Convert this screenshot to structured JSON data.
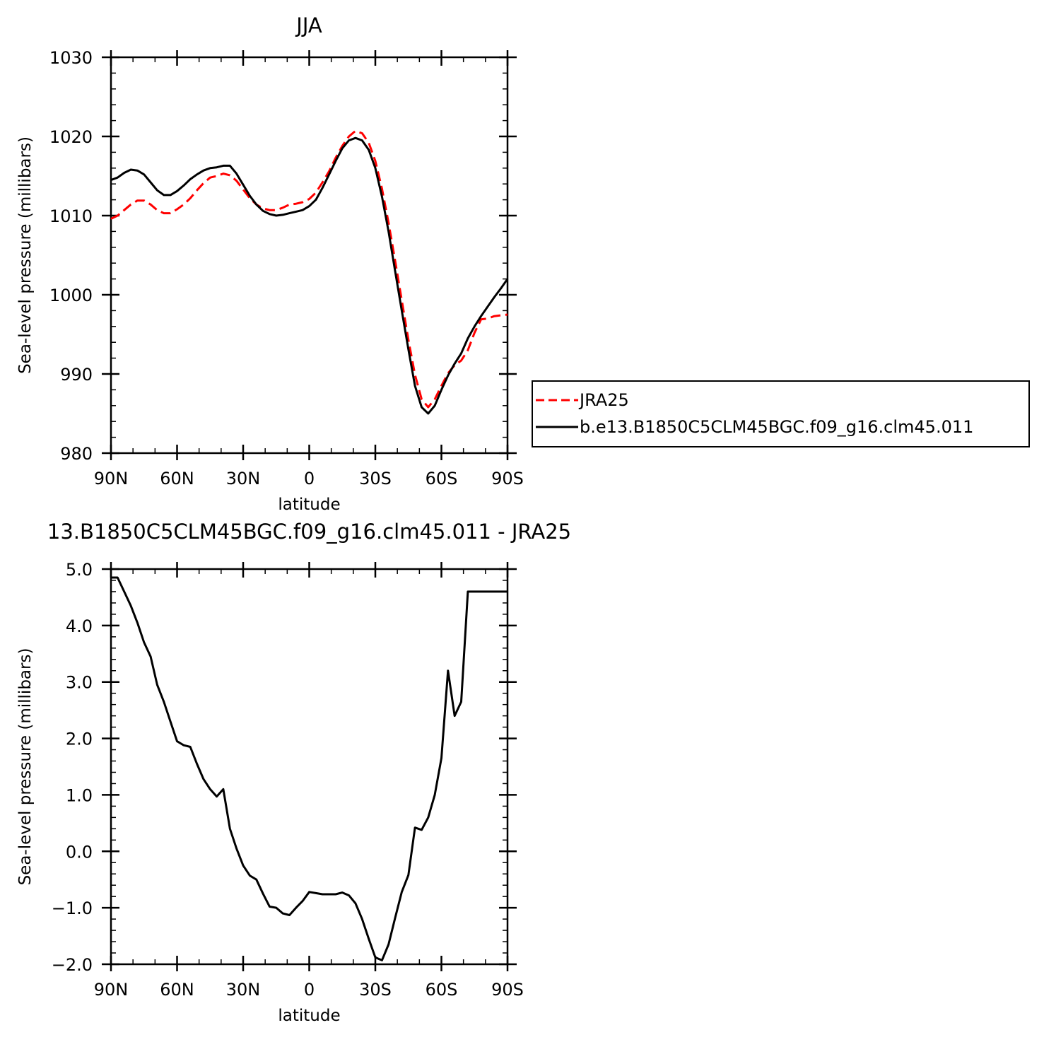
{
  "chart_data": [
    {
      "type": "line",
      "title": "JJA",
      "xlabel": "latitude",
      "ylabel": "Sea-level pressure (millibars)",
      "xlim": [
        90,
        -90
      ],
      "ylim": [
        980,
        1030
      ],
      "x_ticks": [
        {
          "value": 90,
          "label": "90N"
        },
        {
          "value": 60,
          "label": "60N"
        },
        {
          "value": 30,
          "label": "30N"
        },
        {
          "value": 0,
          "label": "0"
        },
        {
          "value": -30,
          "label": "30S"
        },
        {
          "value": -60,
          "label": "60S"
        },
        {
          "value": -90,
          "label": "90S"
        }
      ],
      "y_ticks": [
        {
          "value": 980,
          "label": "980"
        },
        {
          "value": 990,
          "label": "990"
        },
        {
          "value": 1000,
          "label": "1000"
        },
        {
          "value": 1010,
          "label": "1010"
        },
        {
          "value": 1020,
          "label": "1020"
        },
        {
          "value": 1030,
          "label": "1030"
        }
      ],
      "legend_position": "right",
      "series": [
        {
          "name": "JRA25",
          "color": "#ff0000",
          "dashed": true,
          "x": [
            90,
            87,
            84,
            81,
            78,
            75,
            72,
            69,
            66,
            63,
            60,
            57,
            54,
            51,
            48,
            45,
            42,
            39,
            36,
            33,
            30,
            27,
            24,
            21,
            18,
            15,
            12,
            9,
            6,
            3,
            0,
            -3,
            -6,
            -9,
            -12,
            -15,
            -18,
            -21,
            -24,
            -27,
            -30,
            -33,
            -36,
            -39,
            -42,
            -45,
            -48,
            -51,
            -54,
            -57,
            -60,
            -63,
            -66,
            -69,
            -72,
            -75,
            -78,
            -81,
            -84,
            -87,
            -90
          ],
          "values": [
            1009.6,
            1010.0,
            1010.7,
            1011.4,
            1011.9,
            1011.9,
            1011.4,
            1010.7,
            1010.3,
            1010.3,
            1010.8,
            1011.4,
            1012.2,
            1013.2,
            1014.1,
            1014.8,
            1015.0,
            1015.3,
            1015.1,
            1014.4,
            1013.3,
            1012.2,
            1011.4,
            1010.9,
            1010.7,
            1010.7,
            1011.0,
            1011.4,
            1011.5,
            1011.7,
            1012.1,
            1012.9,
            1014.2,
            1015.6,
            1017.3,
            1018.8,
            1020.0,
            1020.7,
            1020.4,
            1019.2,
            1016.9,
            1013.4,
            1009.1,
            1004.3,
            999.3,
            994.3,
            989.9,
            986.8,
            985.8,
            986.8,
            988.5,
            990.1,
            991.1,
            991.7,
            993.0,
            995.2,
            996.9,
            997.0,
            997.3,
            997.4,
            997.5
          ]
        },
        {
          "name": "b.e13.B1850C5CLM45BGC.f09_g16.clm45.011",
          "color": "#000000",
          "dashed": false,
          "x": [
            90,
            87,
            84,
            81,
            78,
            75,
            72,
            69,
            66,
            63,
            60,
            57,
            54,
            51,
            48,
            45,
            42,
            39,
            36,
            33,
            30,
            27,
            24,
            21,
            18,
            15,
            12,
            9,
            6,
            3,
            0,
            -3,
            -6,
            -9,
            -12,
            -15,
            -18,
            -21,
            -24,
            -27,
            -30,
            -33,
            -36,
            -39,
            -42,
            -45,
            -48,
            -51,
            -54,
            -57,
            -60,
            -63,
            -66,
            -69,
            -72,
            -75,
            -78,
            -81,
            -84,
            -87,
            -90
          ],
          "values": [
            1014.5,
            1014.8,
            1015.4,
            1015.8,
            1015.7,
            1015.2,
            1014.2,
            1013.2,
            1012.6,
            1012.6,
            1013.1,
            1013.8,
            1014.6,
            1015.2,
            1015.7,
            1016.0,
            1016.1,
            1016.3,
            1016.3,
            1015.3,
            1013.9,
            1012.5,
            1011.4,
            1010.6,
            1010.2,
            1010.0,
            1010.1,
            1010.3,
            1010.5,
            1010.7,
            1011.2,
            1012.0,
            1013.5,
            1015.2,
            1016.9,
            1018.5,
            1019.5,
            1019.8,
            1019.5,
            1018.3,
            1016.0,
            1012.4,
            1008.0,
            1003.0,
            998.0,
            993.1,
            988.5,
            985.8,
            985.0,
            986.0,
            988.0,
            989.8,
            991.3,
            992.6,
            994.5,
            996.0,
            997.3,
            998.5,
            999.7,
            1000.8,
            1002.0
          ]
        }
      ]
    },
    {
      "type": "line",
      "title": "13.B1850C5CLM45BGC.f09_g16.clm45.011 - JRA25",
      "xlabel": "latitude",
      "ylabel": "Sea-level pressure (millibars)",
      "xlim": [
        90,
        -90
      ],
      "ylim": [
        -2.0,
        5.0
      ],
      "x_ticks": [
        {
          "value": 90,
          "label": "90N"
        },
        {
          "value": 60,
          "label": "60N"
        },
        {
          "value": 30,
          "label": "30N"
        },
        {
          "value": 0,
          "label": "0"
        },
        {
          "value": -30,
          "label": "30S"
        },
        {
          "value": -60,
          "label": "60S"
        },
        {
          "value": -90,
          "label": "90S"
        }
      ],
      "y_ticks": [
        {
          "value": -2.0,
          "label": "−2.0"
        },
        {
          "value": -1.0,
          "label": "−1.0"
        },
        {
          "value": 0.0,
          "label": "0.0"
        },
        {
          "value": 1.0,
          "label": "1.0"
        },
        {
          "value": 2.0,
          "label": "2.0"
        },
        {
          "value": 3.0,
          "label": "3.0"
        },
        {
          "value": 4.0,
          "label": "4.0"
        },
        {
          "value": 5.0,
          "label": "5.0"
        }
      ],
      "series": [
        {
          "color": "#000000",
          "dashed": false,
          "x": [
            90,
            87,
            84,
            81,
            78,
            75,
            72,
            69,
            66,
            63,
            60,
            57,
            54,
            51,
            48,
            45,
            42,
            39,
            36,
            33,
            30,
            27,
            24,
            21,
            18,
            15,
            12,
            9,
            6,
            3,
            0,
            -3,
            -6,
            -9,
            -12,
            -15,
            -18,
            -21,
            -24,
            -27,
            -30,
            -33,
            -36,
            -39,
            -42,
            -45,
            -48,
            -51,
            -54,
            -57,
            -60,
            -63,
            -66,
            -69,
            -72,
            -75,
            -78,
            -81,
            -84,
            -86,
            -88,
            -90
          ],
          "values": [
            4.85,
            4.85,
            4.6,
            4.35,
            4.05,
            3.7,
            3.45,
            2.95,
            2.65,
            2.3,
            1.95,
            1.88,
            1.85,
            1.55,
            1.28,
            1.1,
            0.97,
            1.1,
            0.4,
            0.05,
            -0.25,
            -0.43,
            -0.5,
            -0.75,
            -0.98,
            -1.0,
            -1.1,
            -1.13,
            -1.0,
            -0.88,
            -0.72,
            -0.74,
            -0.76,
            -0.76,
            -0.76,
            -0.73,
            -0.78,
            -0.92,
            -1.2,
            -1.55,
            -1.88,
            -1.93,
            -1.65,
            -1.18,
            -0.72,
            -0.42,
            0.42,
            0.38,
            0.6,
            1.0,
            1.65,
            3.2,
            2.4,
            2.65,
            4.6,
            4.6,
            4.6,
            4.6,
            4.6,
            4.6,
            4.6,
            4.6
          ]
        }
      ]
    }
  ]
}
